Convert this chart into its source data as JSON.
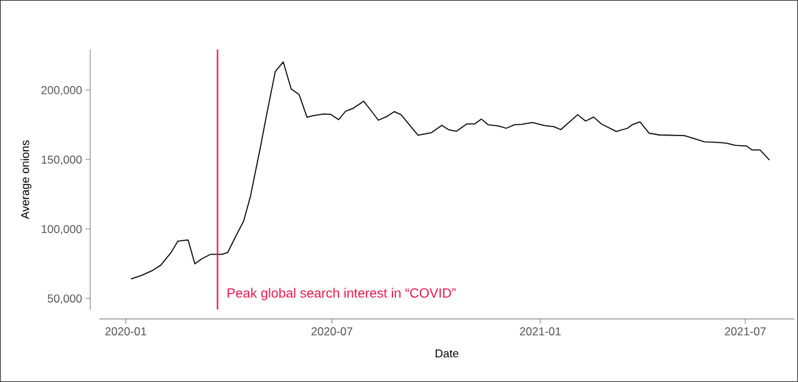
{
  "chart_data": {
    "type": "line",
    "xlabel": "Date",
    "ylabel": "Average onions",
    "x": [
      "2020-01-06",
      "2020-01-15",
      "2020-01-24",
      "2020-02-01",
      "2020-02-10",
      "2020-02-16",
      "2020-02-25",
      "2020-03-02",
      "2020-03-08",
      "2020-03-16",
      "2020-03-26",
      "2020-03-31",
      "2020-04-07",
      "2020-04-14",
      "2020-04-20",
      "2020-04-29",
      "2020-05-04",
      "2020-05-12",
      "2020-05-19",
      "2020-05-26",
      "2020-06-02",
      "2020-06-09",
      "2020-06-15",
      "2020-06-24",
      "2020-06-30",
      "2020-07-07",
      "2020-07-13",
      "2020-07-20",
      "2020-07-29",
      "2020-08-04",
      "2020-08-11",
      "2020-08-19",
      "2020-08-25",
      "2020-08-31",
      "2020-09-15",
      "2020-09-27",
      "2020-10-06",
      "2020-10-12",
      "2020-10-19",
      "2020-10-28",
      "2020-11-04",
      "2020-11-10",
      "2020-11-16",
      "2020-11-25",
      "2020-12-02",
      "2020-12-09",
      "2020-12-16",
      "2020-12-25",
      "2021-01-05",
      "2021-01-13",
      "2021-01-19",
      "2021-02-03",
      "2021-02-10",
      "2021-02-17",
      "2021-02-24",
      "2021-03-09",
      "2021-03-19",
      "2021-03-23",
      "2021-03-30",
      "2021-04-07",
      "2021-04-16",
      "2021-05-08",
      "2021-05-14",
      "2021-05-26",
      "2021-06-04",
      "2021-06-14",
      "2021-06-22",
      "2021-07-02",
      "2021-07-07",
      "2021-07-14",
      "2021-07-22"
    ],
    "series": [
      {
        "color": "#000000",
        "values": [
          64000,
          66500,
          69800,
          73900,
          83000,
          91200,
          92000,
          74800,
          78400,
          81700,
          81700,
          83000,
          94500,
          105500,
          123200,
          159400,
          180800,
          213300,
          220200,
          200800,
          196700,
          180300,
          181600,
          182700,
          182400,
          178600,
          184600,
          186900,
          191900,
          185700,
          178200,
          181100,
          184400,
          182200,
          167400,
          169300,
          174500,
          171400,
          170300,
          175500,
          175500,
          179000,
          174900,
          174100,
          172400,
          174900,
          175300,
          176500,
          174300,
          173600,
          171400,
          182200,
          177600,
          180500,
          175500,
          170100,
          172400,
          174900,
          177000,
          168900,
          167600,
          167200,
          165700,
          162600,
          162400,
          161800,
          160200,
          159700,
          156800,
          156800,
          149800
        ]
      }
    ],
    "xlim": [
      "2019-12-09",
      "2021-08-13"
    ],
    "xticks": [
      {
        "value": "2020-01-01",
        "label": "2020-01"
      },
      {
        "value": "2020-07-01",
        "label": "2020-07"
      },
      {
        "value": "2021-01-01",
        "label": "2021-01"
      },
      {
        "value": "2021-07-01",
        "label": "2021-07"
      }
    ],
    "ylim": [
      42000,
      229000
    ],
    "yticks": [
      {
        "value": 50000,
        "label": "50,000"
      },
      {
        "value": 100000,
        "label": "100,000"
      },
      {
        "value": 150000,
        "label": "150,000"
      },
      {
        "value": 200000,
        "label": "200,000"
      }
    ],
    "ref_lines": [
      {
        "axis": "x",
        "value": "2020-03-22",
        "label": "Peak global search interest in “COVID”",
        "color": "#e8174a"
      }
    ],
    "grid": false,
    "legend": false,
    "marker": "none",
    "line_style": "solid"
  }
}
